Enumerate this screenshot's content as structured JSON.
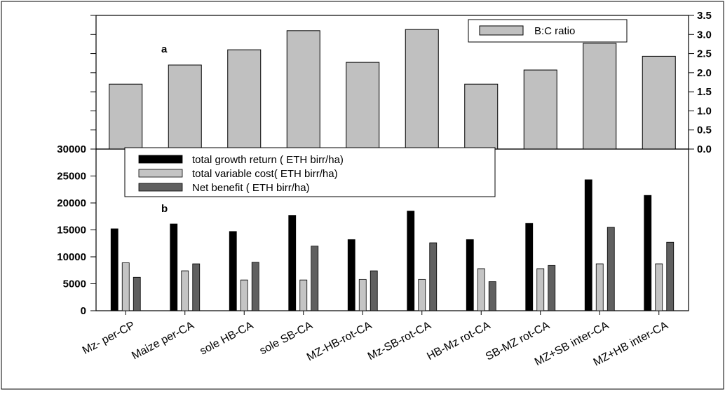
{
  "chart_data": [
    {
      "type": "bar",
      "panel_label": "a",
      "categories": [
        "Mz- per-CP",
        "Maize per-CA",
        "sole HB-CA",
        "sole SB-CA",
        "MZ-HB-rot-CA",
        "Mz-SB-rot-CA",
        "HB-Mz rot-CA",
        "SB-MZ rot-CA",
        "MZ+SB inter-CA",
        "MZ+HB inter-CA"
      ],
      "series": [
        {
          "name": "B:C ratio",
          "color": "#c0c0c0",
          "values": [
            1.7,
            2.2,
            2.6,
            3.1,
            2.27,
            3.13,
            1.7,
            2.07,
            2.77,
            2.43
          ]
        }
      ],
      "ylim": [
        0,
        3.5
      ],
      "y_ticks": [
        "0.0",
        "0.5",
        "1.0",
        "1.5",
        "2.0",
        "2.5",
        "3.0",
        "3.5"
      ],
      "y_axis_side": "right",
      "legend_position": "top-right"
    },
    {
      "type": "bar",
      "panel_label": "b",
      "categories": [
        "Mz- per-CP",
        "Maize per-CA",
        "sole HB-CA",
        "sole SB-CA",
        "MZ-HB-rot-CA",
        "Mz-SB-rot-CA",
        "HB-Mz rot-CA",
        "SB-MZ rot-CA",
        "MZ+SB inter-CA",
        "MZ+HB inter-CA"
      ],
      "series": [
        {
          "name": "total growth return ( ETH birr/ha)",
          "color": "#000000",
          "values": [
            15200,
            16100,
            14700,
            17700,
            13200,
            18500,
            13200,
            16200,
            24300,
            21400
          ]
        },
        {
          "name": "total variable cost( ETH birr/ha)",
          "color": "#c4c4c4",
          "values": [
            8900,
            7400,
            5700,
            5700,
            5800,
            5800,
            7800,
            7800,
            8700,
            8700
          ]
        },
        {
          "name": "Net benefit ( ETH birr/ha)",
          "color": "#606060",
          "values": [
            6200,
            8700,
            9000,
            12000,
            7400,
            12600,
            5400,
            8400,
            15500,
            12700
          ]
        }
      ],
      "ylim": [
        0,
        30000
      ],
      "y_ticks": [
        "0",
        "5000",
        "10000",
        "15000",
        "20000",
        "25000",
        "30000"
      ],
      "y_axis_side": "left",
      "legend_position": "top-left"
    }
  ]
}
